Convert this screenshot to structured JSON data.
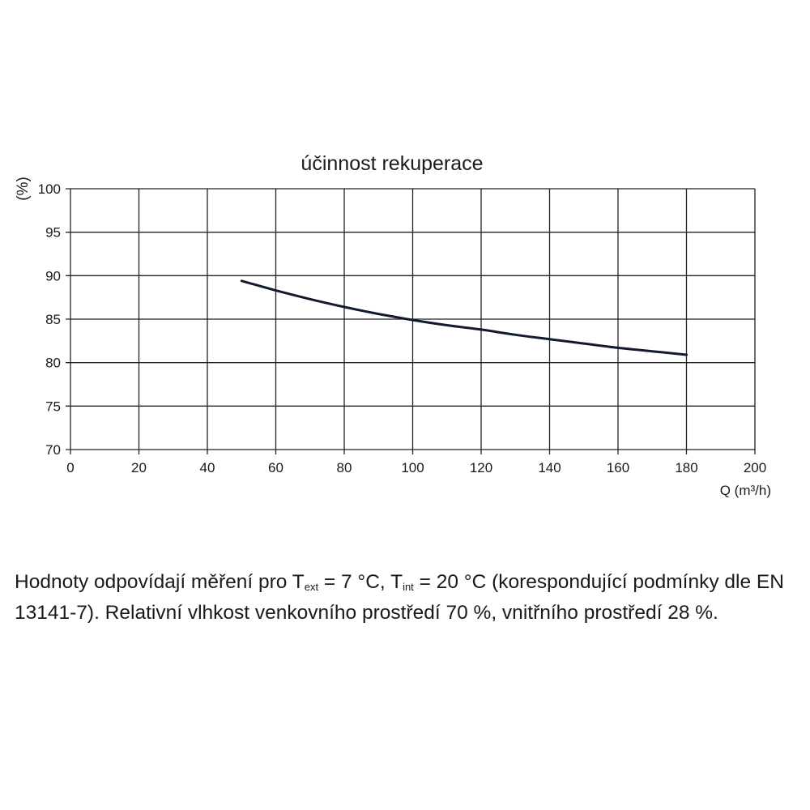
{
  "chart_data": {
    "type": "line",
    "title": "účinnost rekuperace",
    "xlabel": "Q (m³/h)",
    "ylabel": "(%)",
    "xlim": [
      0,
      200
    ],
    "ylim": [
      70,
      100
    ],
    "x_ticks": [
      0,
      20,
      40,
      60,
      80,
      100,
      120,
      140,
      160,
      180,
      200
    ],
    "y_ticks": [
      70,
      75,
      80,
      85,
      90,
      95,
      100
    ],
    "grid": true,
    "line_color": "#111a2e",
    "series": [
      {
        "x": [
          50,
          60,
          70,
          80,
          90,
          100,
          110,
          120,
          130,
          140,
          150,
          160,
          170,
          180
        ],
        "values": [
          89.4,
          88.3,
          87.3,
          86.4,
          85.6,
          84.9,
          84.3,
          83.8,
          83.2,
          82.7,
          82.2,
          81.7,
          81.3,
          80.9
        ]
      }
    ]
  },
  "caption": {
    "part1": "Hodnoty odpovídají měření pro T",
    "sub1": "ext",
    "part2": " = 7 °C, T",
    "sub2": "int",
    "part3": " = 20 °C (korespondující podmínky dle EN 13141-7). Relativní vlhkost venkovního prostředí 70 %, vnitřního prostředí 28 %."
  }
}
